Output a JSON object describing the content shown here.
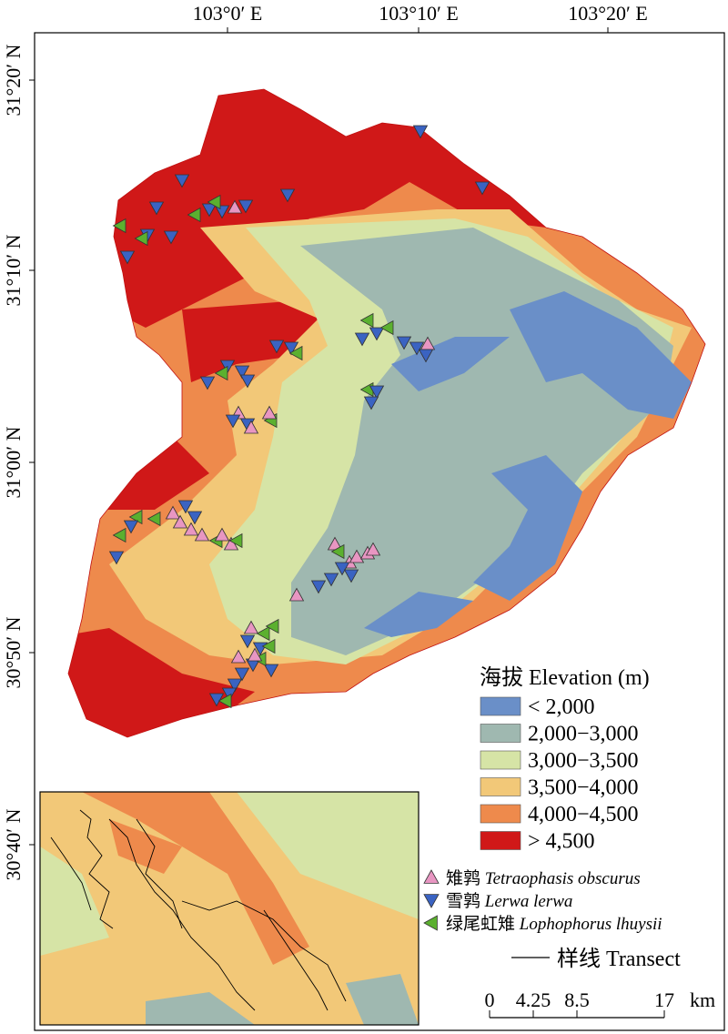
{
  "axes": {
    "top_labels": [
      "103°0′ E",
      "103°10′ E",
      "103°20′ E"
    ],
    "left_labels": [
      "31°20′ N",
      "31°10′ N",
      "31°00′ N",
      "30°50′ N",
      "30°40′ N"
    ]
  },
  "legend": {
    "title": "海拔 Elevation (m)",
    "classes": [
      {
        "label": "< 2,000",
        "color": "#6a8fc8"
      },
      {
        "label": "2,000−3,000",
        "color": "#9fb8b0"
      },
      {
        "label": "3,000−3,500",
        "color": "#d6e4a6"
      },
      {
        "label": "3,500−4,000",
        "color": "#f2c878"
      },
      {
        "label": "4,000−4,500",
        "color": "#ee8a4c"
      },
      {
        "label": "> 4,500",
        "color": "#d01818"
      }
    ],
    "species": [
      {
        "cn": "雉鹑",
        "latin": "Tetraophasis obscurus",
        "color": "#e896c2",
        "icon": "triangle-up-icon"
      },
      {
        "cn": "雪鹑",
        "latin": "Lerwa lerwa",
        "color": "#3a63c2",
        "icon": "triangle-down-icon"
      },
      {
        "cn": "绿尾虹雉",
        "latin": "Lophophorus lhuysii",
        "color": "#5bb02f",
        "icon": "triangle-left-icon"
      }
    ],
    "transect_label": "样线 Transect",
    "scale_labels": [
      "0",
      "4.25",
      "8.5",
      "17",
      "km"
    ]
  }
}
